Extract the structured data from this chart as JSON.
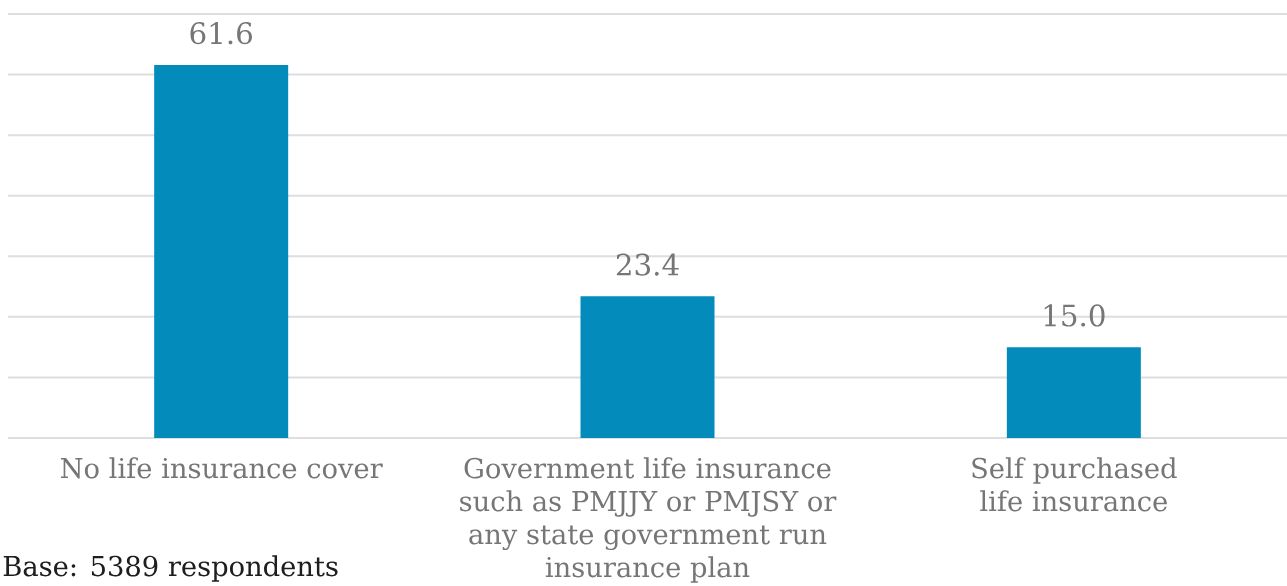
{
  "chart_data": {
    "type": "bar",
    "categories": [
      "No life insurance cover",
      "Government life insurance such as PMJJY or PMJSY or any state government run insurance plan",
      "Self purchased life insurance"
    ],
    "values": [
      61.6,
      23.4,
      15.0
    ],
    "value_labels": [
      "61.6",
      "23.4",
      "15.0"
    ],
    "color": "#038bbb",
    "ylim": [
      0,
      70
    ],
    "yticks": [
      {
        "value": 0,
        "label": null
      },
      {
        "value": 10,
        "label": null
      },
      {
        "value": 20,
        "label": null
      },
      {
        "value": 30,
        "label": null
      },
      {
        "value": 40,
        "label": null
      },
      {
        "value": 50,
        "label": null
      },
      {
        "value": 60,
        "label": null
      },
      {
        "value": 70,
        "label": null
      }
    ],
    "grid": "y",
    "tick_labels": "x",
    "annotations": [
      "Base: 5389 respondents"
    ]
  }
}
